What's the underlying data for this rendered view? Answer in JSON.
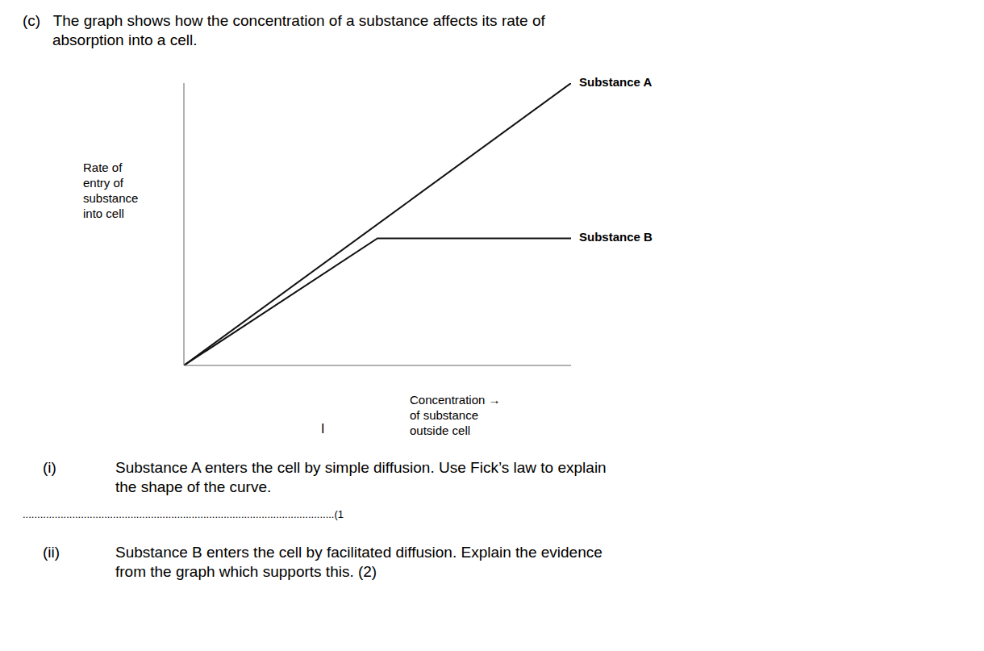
{
  "chart_data": {
    "type": "line",
    "title": [
      "(c)   The graph shows how the concentration of a substance affects its rate of",
      "       absorption into a cell."
    ],
    "ylabel": [
      "Rate of",
      "entry of",
      "substance",
      "into cell"
    ],
    "xlabel": [
      "Concentration →",
      "of substance",
      "outside cell"
    ],
    "series": [
      {
        "name": "Substance A",
        "color": "#111111",
        "x": [
          0,
          10
        ],
        "values": [
          0,
          10
        ]
      },
      {
        "name": "Substance B",
        "color": "#111111",
        "x": [
          0,
          5.0,
          10
        ],
        "values": [
          0,
          4.5,
          4.5
        ]
      }
    ],
    "xlim": [
      0,
      10
    ],
    "ylim": [
      0,
      10
    ],
    "tick_labels": false,
    "grid": false,
    "annotations": [
      "I",
      "(i)",
      "Substance A enters the cell by simple diffusion. Use Fick’s law to explain\nthe shape of the curve.",
      "...........................................................................................................(1",
      "(ii)",
      "Substance B enters the cell by facilitated diffusion. Explain the evidence\nfrom the graph which supports this. (2)"
    ]
  }
}
